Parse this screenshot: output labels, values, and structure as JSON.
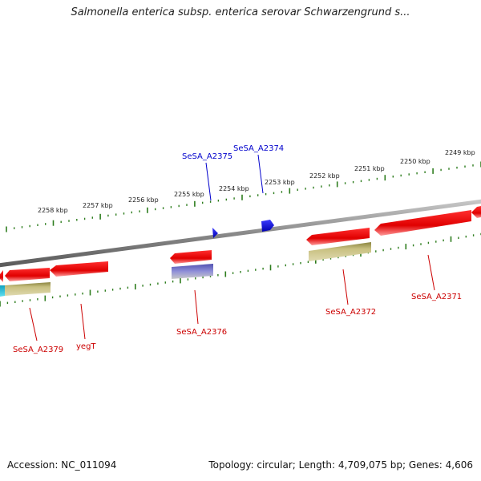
{
  "title": "Salmonella enterica subsp. enterica serovar Schwarzengrund s...",
  "footer": {
    "accession": "Accession: NC_011094",
    "summary": "Topology: circular; Length: 4,709,075 bp; Genes: 4,606"
  },
  "scale_labels": [
    "2258 kbp",
    "2257 kbp",
    "2256 kbp",
    "2255 kbp",
    "2254 kbp",
    "2253 kbp",
    "2252 kbp",
    "2251 kbp",
    "2250 kbp",
    "2249 kbp"
  ],
  "forward_gene_labels": [
    "SeSA_A2375",
    "SeSA_A2374"
  ],
  "reverse_gene_labels": [
    "SeSA_A2379",
    "yegT",
    "SeSA_A2376",
    "SeSA_A2372",
    "SeSA_A2371"
  ],
  "colors": {
    "backbone": "#888888",
    "tick": "#2e7d1e",
    "reverse_gene": "#e00000",
    "forward_gene": "#1010e0",
    "cds_feature": "#b8b070",
    "rna_feature": "#7070c0",
    "other_feature": "#20b8d0",
    "reverse_label": "#cc0000",
    "forward_label": "#0000cc"
  }
}
